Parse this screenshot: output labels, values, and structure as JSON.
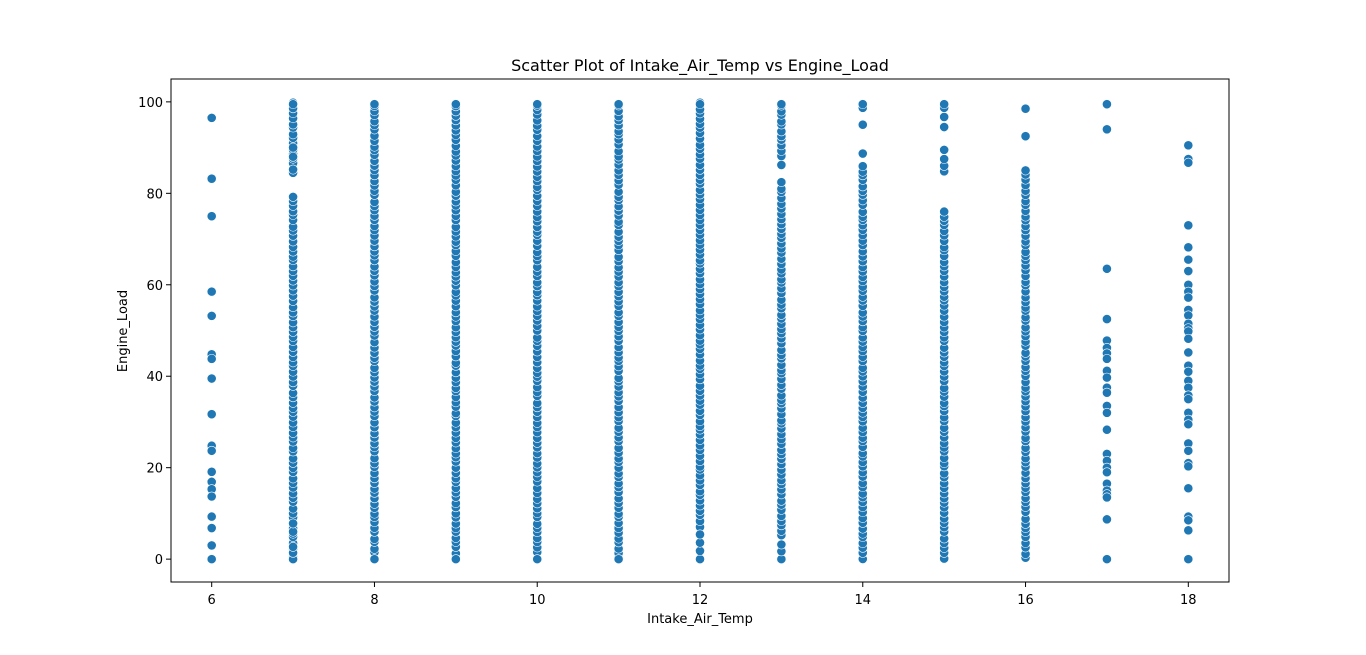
{
  "chart_data": {
    "type": "scatter",
    "title": "Scatter Plot of Intake_Air_Temp vs Engine_Load",
    "xlabel": "Intake_Air_Temp",
    "ylabel": "Engine_Load",
    "xlim": [
      5.5,
      18.5
    ],
    "ylim": [
      -5,
      105
    ],
    "xticks": [
      6,
      8,
      10,
      12,
      14,
      16,
      18
    ],
    "yticks": [
      0,
      20,
      40,
      60,
      80,
      100
    ],
    "grid": false,
    "legend": "none",
    "marker_color": "#1f77b4",
    "series": [
      {
        "points": [
          {
            "x": 6,
            "y": [
              96.5,
              83.2,
              75.0,
              58.5,
              53.2,
              44.8,
              43.8,
              39.5,
              31.7,
              24.8,
              23.7,
              19.1,
              16.9,
              15.3,
              13.7,
              9.3,
              6.8,
              3.0,
              0.0
            ]
          },
          {
            "x": 7,
            "dense": [
              [
                0,
                10
              ],
              [
                11,
                80
              ],
              [
                84,
                100
              ]
            ],
            "extra": [
              0.0,
              1.4,
              2.7,
              6.0,
              7.8,
              85.2,
              88.0,
              90.0,
              99.5
            ]
          },
          {
            "x": 8,
            "dense": [
              [
                0,
                100
              ]
            ],
            "extra": [
              0.0,
              99.5
            ]
          },
          {
            "x": 9,
            "dense": [
              [
                0,
                100
              ]
            ],
            "extra": [
              0.0,
              99.5
            ]
          },
          {
            "x": 10,
            "dense": [
              [
                0,
                100
              ]
            ],
            "extra": [
              0.0,
              99.5
            ]
          },
          {
            "x": 11,
            "dense": [
              [
                0,
                100
              ]
            ],
            "extra": [
              0.0,
              99.5
            ]
          },
          {
            "x": 12,
            "dense": [
              [
                7,
                100
              ]
            ],
            "extra": [
              0.0,
              1.8,
              3.6,
              5.4,
              99.5
            ]
          },
          {
            "x": 13,
            "dense": [
              [
                5,
                83
              ],
              [
                88,
                100
              ]
            ],
            "extra": [
              0.0,
              1.7,
              3.2,
              86.2,
              99.5
            ]
          },
          {
            "x": 14,
            "dense": [
              [
                0,
                86
              ]
            ],
            "extra": [
              88.7,
              95.0,
              98.7,
              99.5
            ]
          },
          {
            "x": 15,
            "dense": [
              [
                0,
                76
              ]
            ],
            "extra": [
              84.8,
              86.0,
              87.5,
              89.5,
              94.5,
              96.7,
              98.7,
              99.5
            ]
          },
          {
            "x": 16,
            "dense": [
              [
                0,
                85
              ]
            ],
            "extra": [
              92.5,
              98.5
            ]
          },
          {
            "x": 17,
            "y": [
              99.5,
              94.0,
              63.5,
              52.5,
              47.8,
              46.2,
              45.0,
              43.8,
              41.2,
              39.7,
              37.5,
              36.4,
              33.5,
              32.0,
              28.3,
              23.0,
              21.5,
              20.0,
              19.0,
              16.5,
              15.0,
              14.2,
              13.5,
              8.7,
              0.0
            ]
          },
          {
            "x": 18,
            "y": [
              90.5,
              87.5,
              86.7,
              73.0,
              68.2,
              65.5,
              63.0,
              60.0,
              58.5,
              57.2,
              54.5,
              53.3,
              51.5,
              50.5,
              49.8,
              48.2,
              45.2,
              42.3,
              41.0,
              39.0,
              37.5,
              35.8,
              35.0,
              32.0,
              30.5,
              29.5,
              25.3,
              23.7,
              21.0,
              20.3,
              15.5,
              9.3,
              8.5,
              6.3,
              0.0
            ]
          }
        ]
      }
    ]
  }
}
